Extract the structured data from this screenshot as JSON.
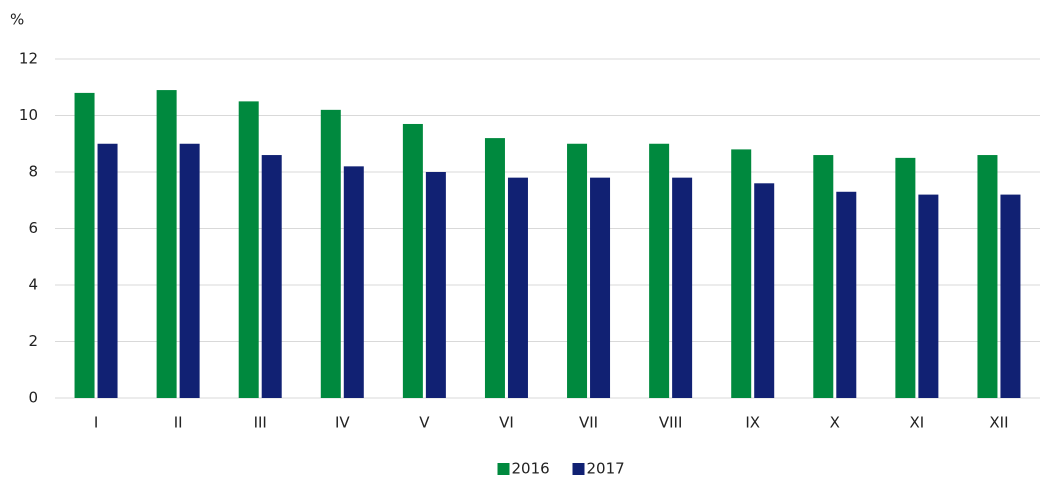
{
  "chart_data": {
    "type": "bar",
    "y_label": "%",
    "categories": [
      "I",
      "II",
      "III",
      "IV",
      "V",
      "VI",
      "VII",
      "VIII",
      "IX",
      "X",
      "XI",
      "XII"
    ],
    "series": [
      {
        "name": "2016",
        "color": "#00893e",
        "values": [
          10.8,
          10.9,
          10.5,
          10.2,
          9.7,
          9.2,
          9.0,
          9.0,
          8.8,
          8.6,
          8.5,
          8.6
        ]
      },
      {
        "name": "2017",
        "color": "#112173",
        "values": [
          9.0,
          9.0,
          8.6,
          8.2,
          8.0,
          7.8,
          7.8,
          7.8,
          7.6,
          7.3,
          7.2,
          7.2
        ]
      }
    ],
    "ylim": [
      0,
      12
    ],
    "yticks": [
      0,
      2,
      4,
      6,
      8,
      10,
      12
    ],
    "grid": true,
    "legend": "bottom"
  }
}
